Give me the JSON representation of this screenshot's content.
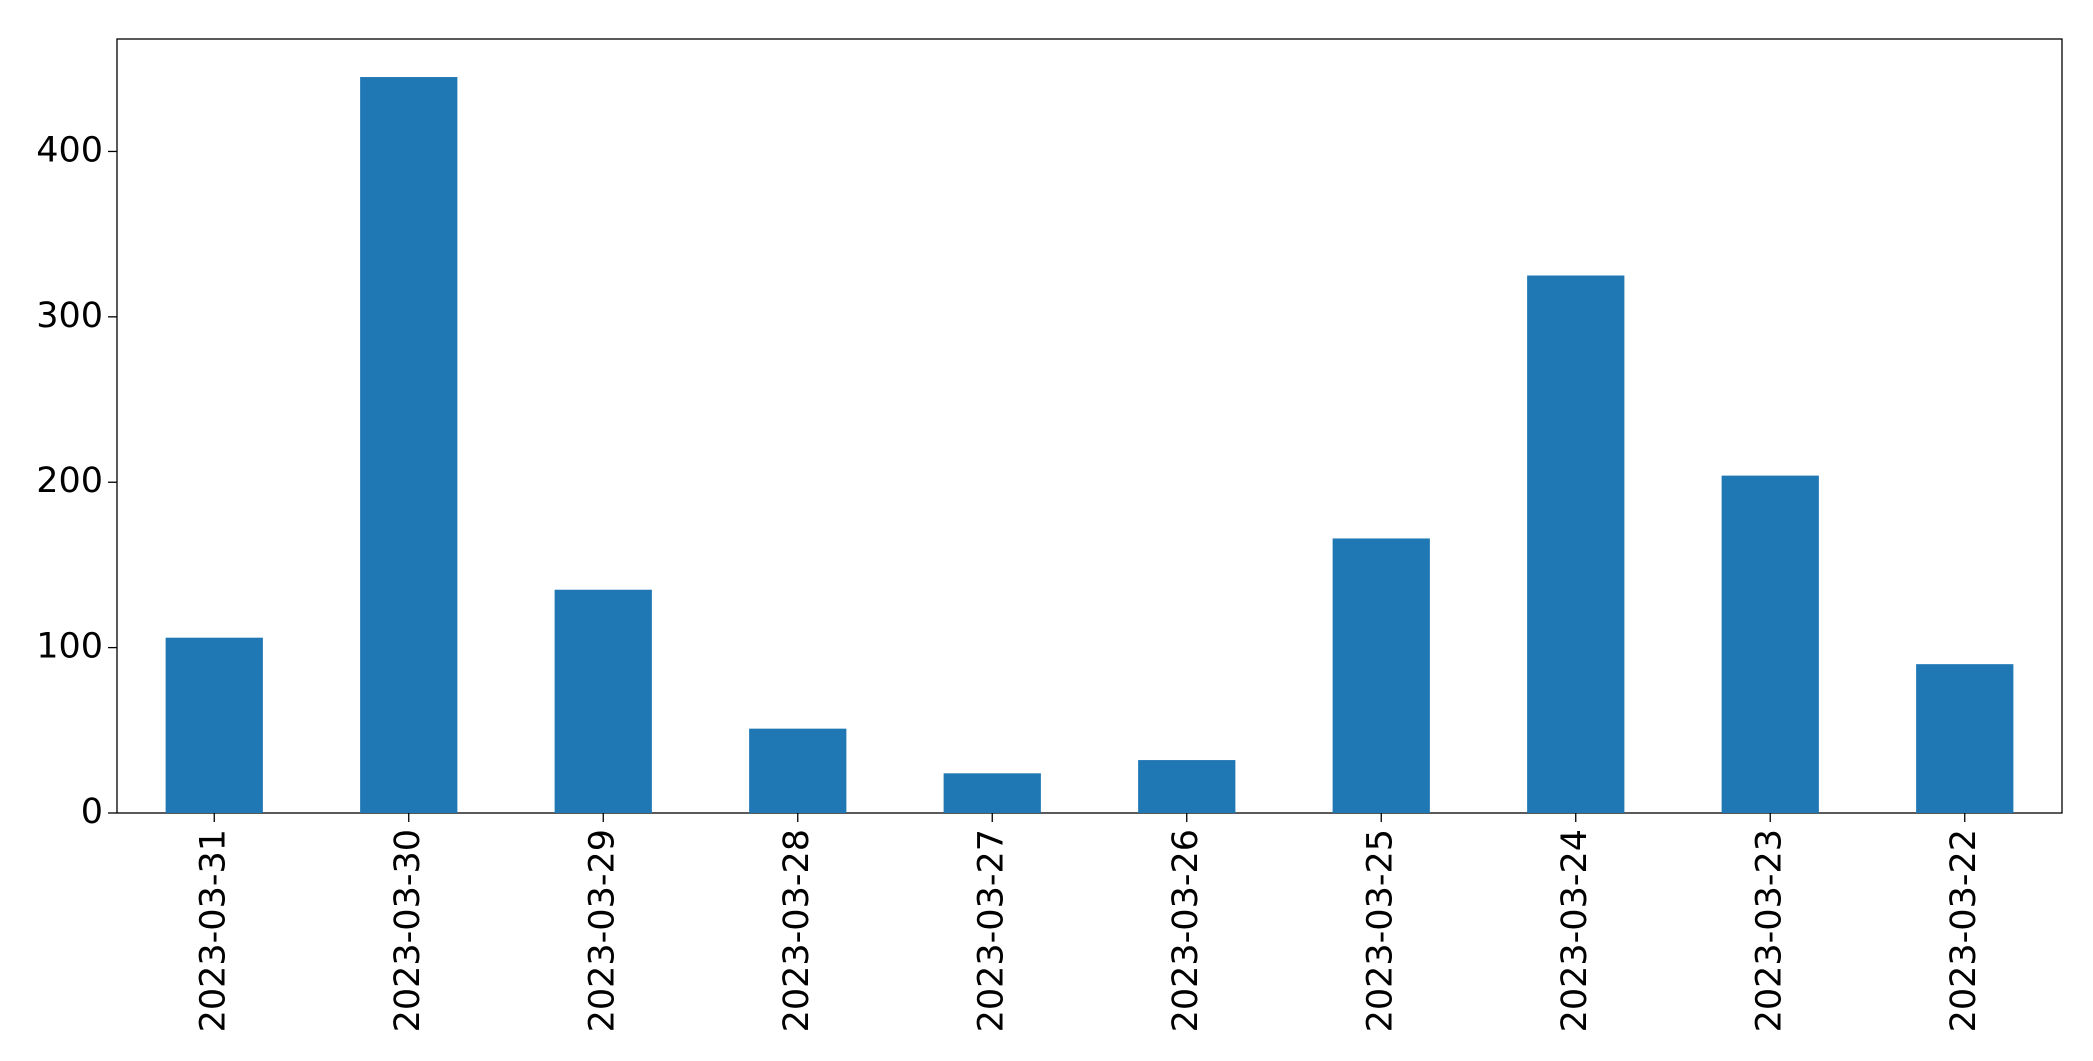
{
  "chart_data": {
    "type": "bar",
    "categories": [
      "2023-03-31",
      "2023-03-30",
      "2023-03-29",
      "2023-03-28",
      "2023-03-27",
      "2023-03-26",
      "2023-03-25",
      "2023-03-24",
      "2023-03-23",
      "2023-03-22"
    ],
    "values": [
      106,
      445,
      135,
      51,
      24,
      32,
      166,
      325,
      204,
      90
    ],
    "color": "#1f77b4",
    "ylim": [
      0,
      468
    ],
    "yticks": [
      0,
      100,
      200,
      300,
      400
    ],
    "grid": false
  }
}
